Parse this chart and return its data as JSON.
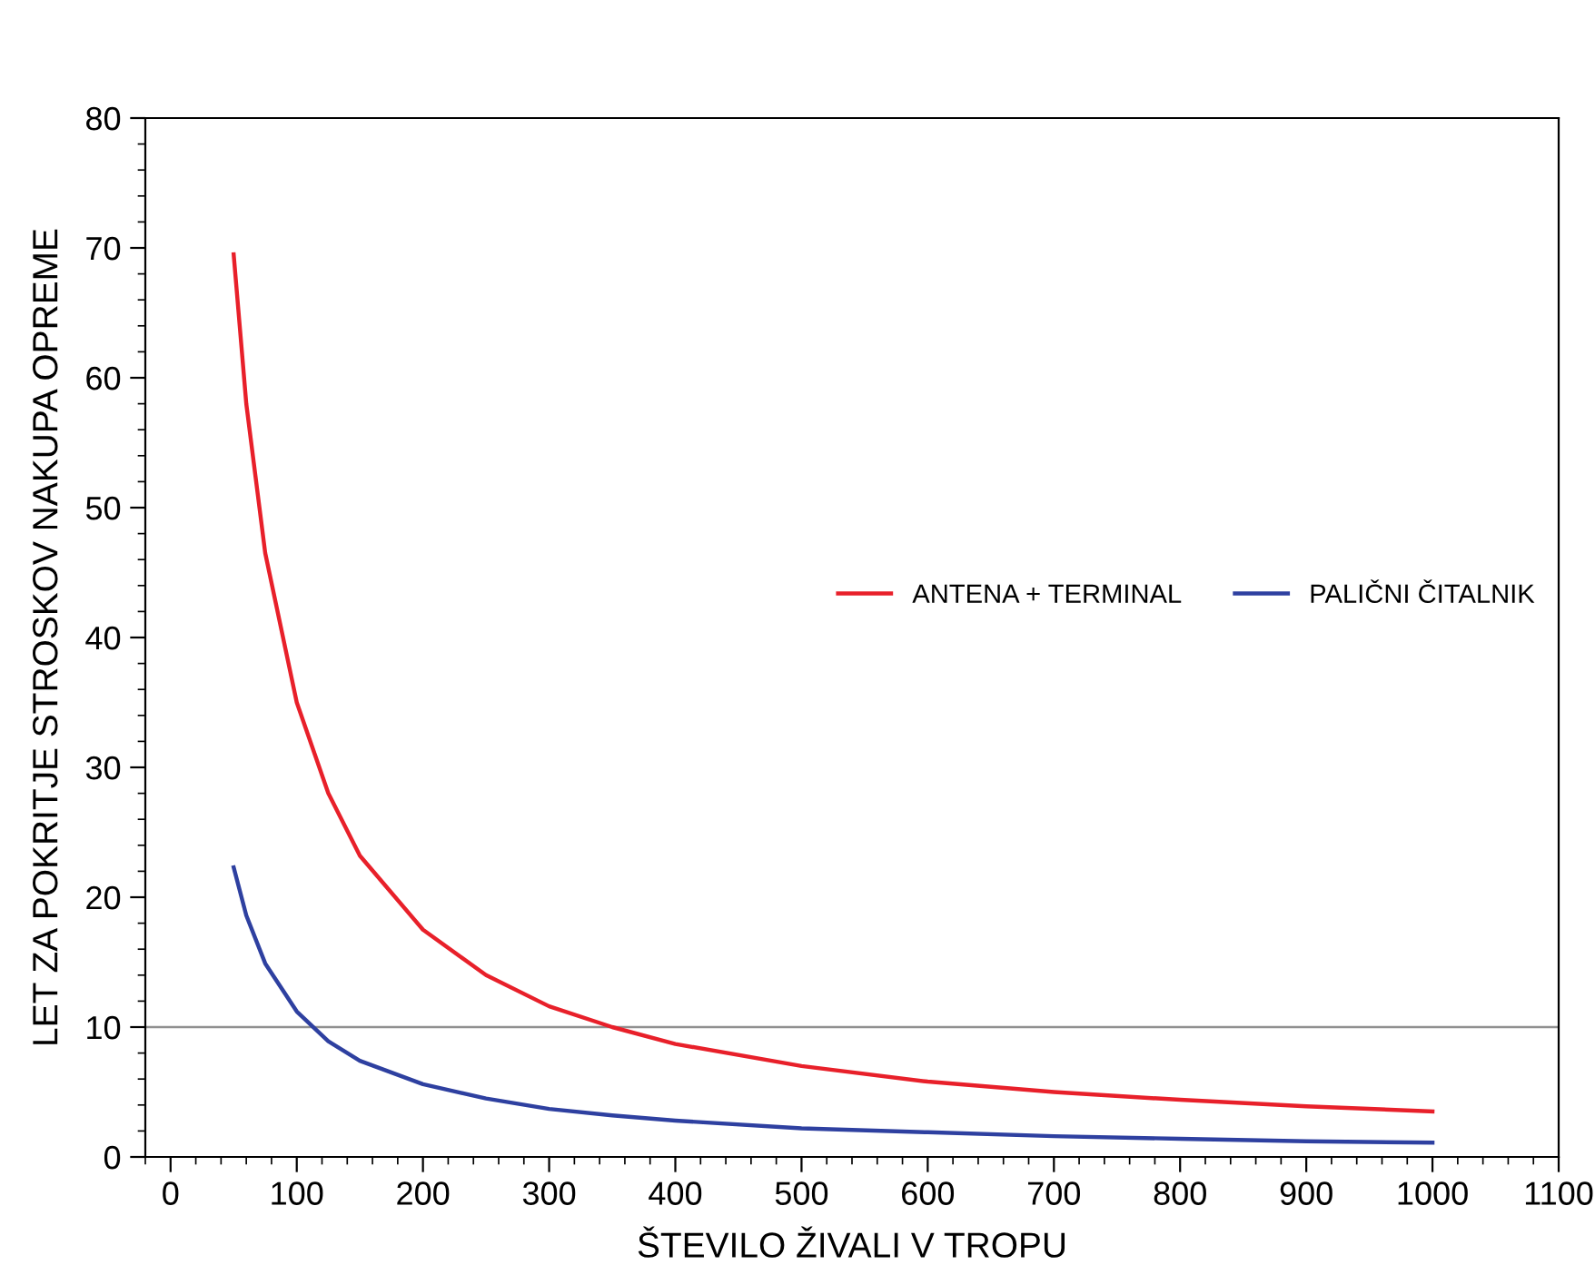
{
  "chart_data": {
    "type": "line",
    "xlabel": "ŠTEVILO ŽIVALI V TROPU",
    "ylabel": "LET ZA POKRITJE STROSKOV NAKUPA OPREME",
    "x": [
      50,
      60,
      75,
      100,
      125,
      150,
      200,
      250,
      300,
      350,
      400,
      500,
      600,
      700,
      800,
      900,
      1000
    ],
    "series": [
      {
        "name": "ANTENA + TERMINAL",
        "color": "#e8202a",
        "values": [
          69.5,
          58,
          46.5,
          35,
          28,
          23.2,
          17.5,
          14,
          11.6,
          10,
          8.7,
          7,
          5.8,
          5,
          4.4,
          3.9,
          3.5
        ]
      },
      {
        "name": "PALIČNI ČITALNIK",
        "color": "#2e40a0",
        "values": [
          22.3,
          18.6,
          14.9,
          11.2,
          8.9,
          7.4,
          5.6,
          4.5,
          3.7,
          3.2,
          2.8,
          2.2,
          1.9,
          1.6,
          1.4,
          1.2,
          1.1
        ]
      }
    ],
    "xlim": [
      -20,
      1100
    ],
    "xticks": [
      0,
      100,
      200,
      300,
      400,
      500,
      600,
      700,
      800,
      900,
      1000,
      1100
    ],
    "ylim": [
      0,
      80
    ],
    "yticks": [
      0,
      10,
      20,
      30,
      40,
      50,
      60,
      70,
      80
    ],
    "ref_lines": [
      {
        "axis": "y",
        "value": 10,
        "color": "#909090"
      }
    ],
    "legend": "right",
    "grid": false,
    "marker": "none",
    "line_style": "solid"
  }
}
